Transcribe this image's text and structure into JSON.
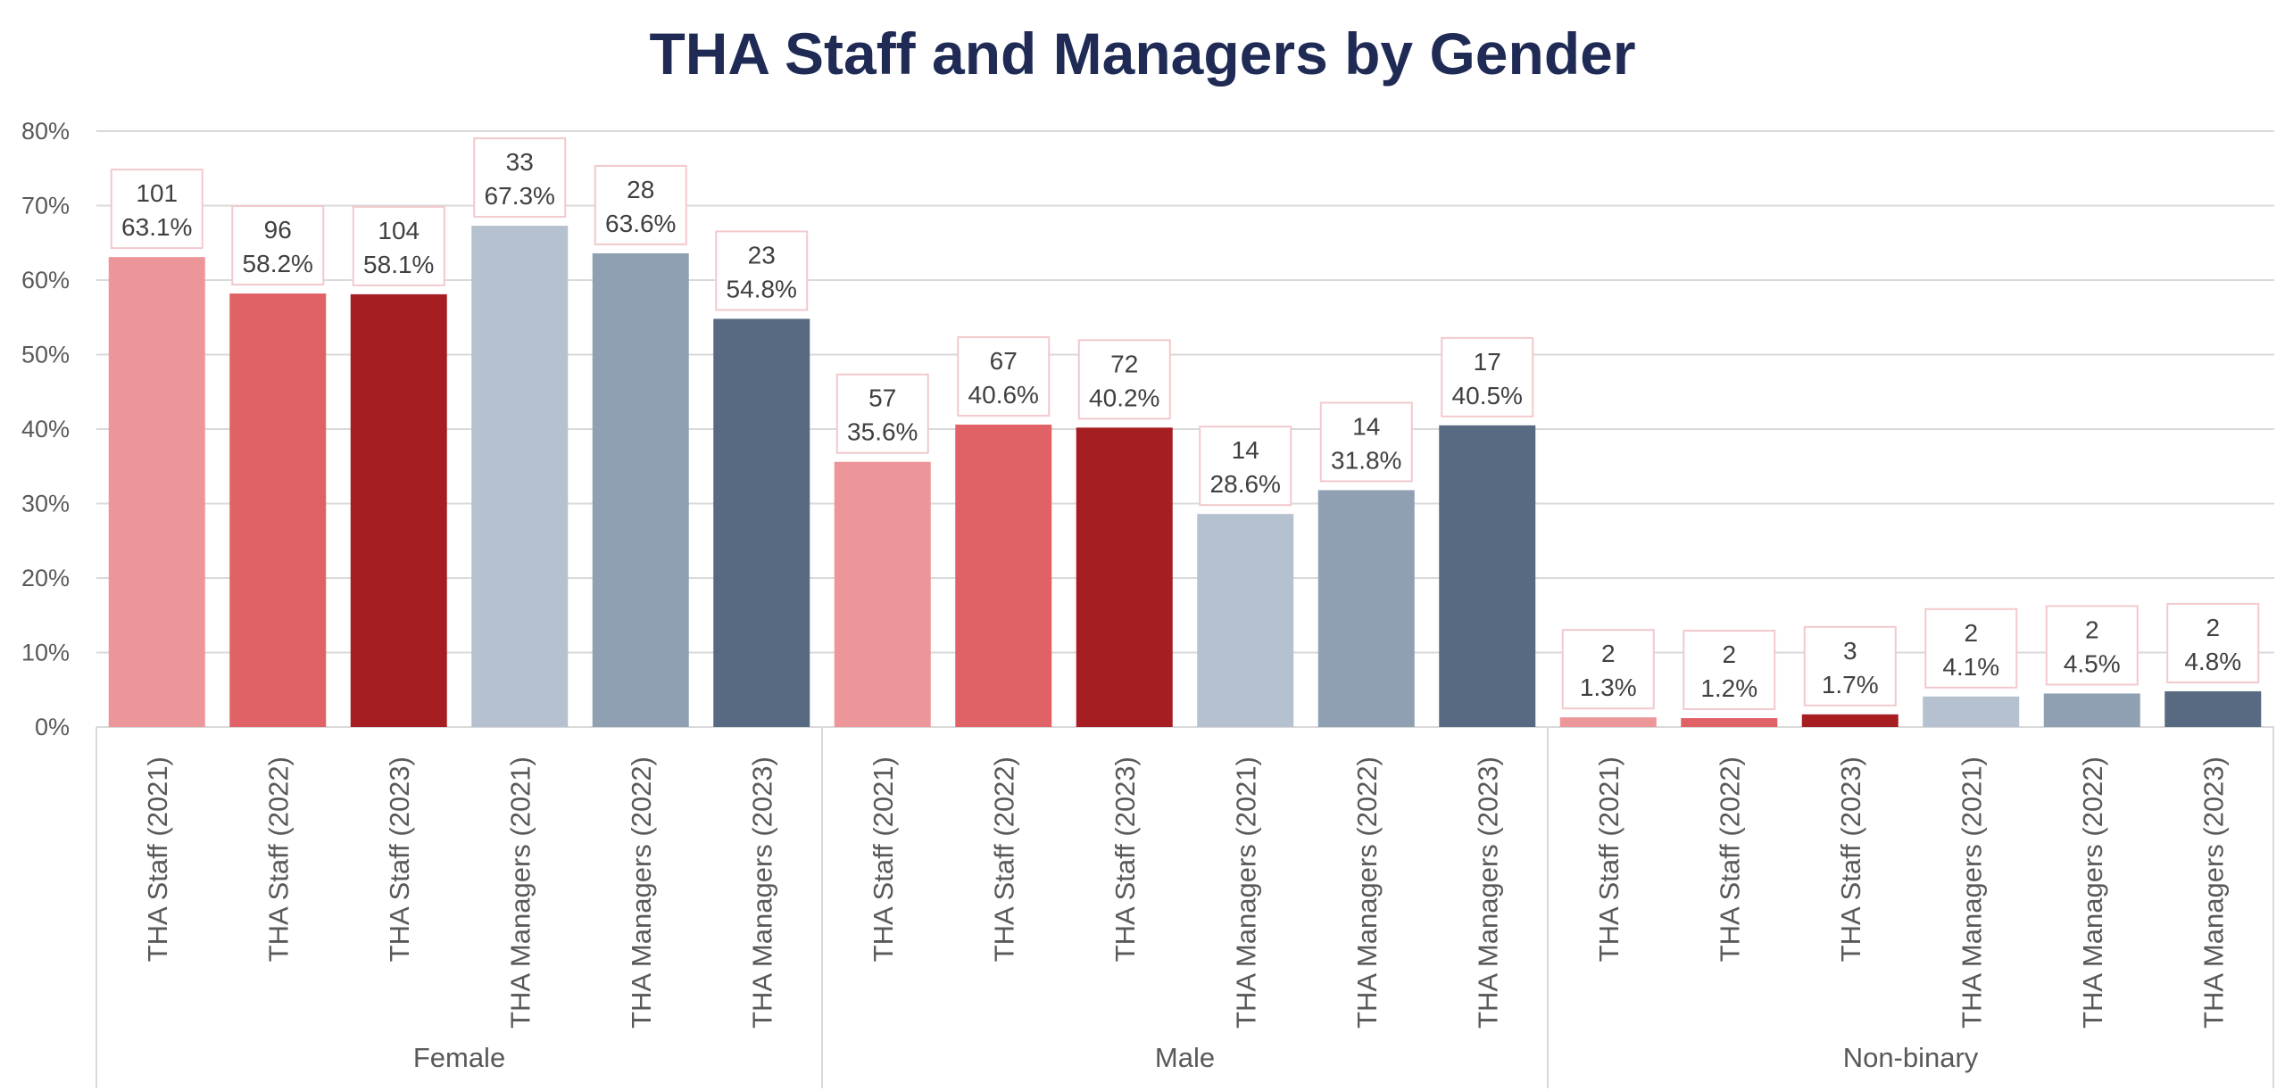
{
  "chart_data": {
    "type": "bar",
    "title": "THA Staff and Managers by Gender",
    "xlabel": "",
    "ylabel": "",
    "ylim": [
      0,
      0.8
    ],
    "y_ticks": [
      "0%",
      "10%",
      "20%",
      "30%",
      "40%",
      "50%",
      "60%",
      "70%",
      "80%"
    ],
    "grid": true,
    "legend": "none",
    "groups": [
      {
        "name": "Female",
        "bars": [
          {
            "category": "THA Staff (2021)",
            "value": 0.631,
            "count": "101",
            "pct": "63.1%",
            "color": "#ec9699"
          },
          {
            "category": "THA Staff (2022)",
            "value": 0.582,
            "count": "96",
            "pct": "58.2%",
            "color": "#e06266"
          },
          {
            "category": "THA Staff (2023)",
            "value": 0.581,
            "count": "104",
            "pct": "58.1%",
            "color": "#a61e22"
          },
          {
            "category": "THA Managers (2021)",
            "value": 0.673,
            "count": "33",
            "pct": "67.3%",
            "color": "#b5c1ce"
          },
          {
            "category": "THA Managers (2022)",
            "value": 0.636,
            "count": "28",
            "pct": "63.6%",
            "color": "#8fa0b3"
          },
          {
            "category": "THA Managers (2023)",
            "value": 0.548,
            "count": "23",
            "pct": "54.8%",
            "color": "#576a81"
          }
        ]
      },
      {
        "name": "Male",
        "bars": [
          {
            "category": "THA Staff (2021)",
            "value": 0.356,
            "count": "57",
            "pct": "35.6%",
            "color": "#ec9699"
          },
          {
            "category": "THA Staff (2022)",
            "value": 0.406,
            "count": "67",
            "pct": "40.6%",
            "color": "#e06266"
          },
          {
            "category": "THA Staff (2023)",
            "value": 0.402,
            "count": "72",
            "pct": "40.2%",
            "color": "#a61e22"
          },
          {
            "category": "THA Managers (2021)",
            "value": 0.286,
            "count": "14",
            "pct": "28.6%",
            "color": "#b5c1ce"
          },
          {
            "category": "THA Managers (2022)",
            "value": 0.318,
            "count": "14",
            "pct": "31.8%",
            "color": "#8fa0b3"
          },
          {
            "category": "THA Managers (2023)",
            "value": 0.405,
            "count": "17",
            "pct": "40.5%",
            "color": "#576a81"
          }
        ]
      },
      {
        "name": "Non-binary",
        "bars": [
          {
            "category": "THA Staff (2021)",
            "value": 0.013,
            "count": "2",
            "pct": "1.3%",
            "color": "#ec9699"
          },
          {
            "category": "THA Staff (2022)",
            "value": 0.012,
            "count": "2",
            "pct": "1.2%",
            "color": "#e06266"
          },
          {
            "category": "THA Staff (2023)",
            "value": 0.017,
            "count": "3",
            "pct": "1.7%",
            "color": "#a61e22"
          },
          {
            "category": "THA Managers (2021)",
            "value": 0.041,
            "count": "2",
            "pct": "4.1%",
            "color": "#b5c1ce"
          },
          {
            "category": "THA Managers (2022)",
            "value": 0.045,
            "count": "2",
            "pct": "4.5%",
            "color": "#8fa0b3"
          },
          {
            "category": "THA Managers (2023)",
            "value": 0.048,
            "count": "2",
            "pct": "4.8%",
            "color": "#576a81"
          }
        ]
      }
    ]
  },
  "colors": {
    "title": "#1f2a55",
    "gridline": "#d9d9d9",
    "axis_text": "#595959",
    "label_border": "#f2c9cc"
  }
}
